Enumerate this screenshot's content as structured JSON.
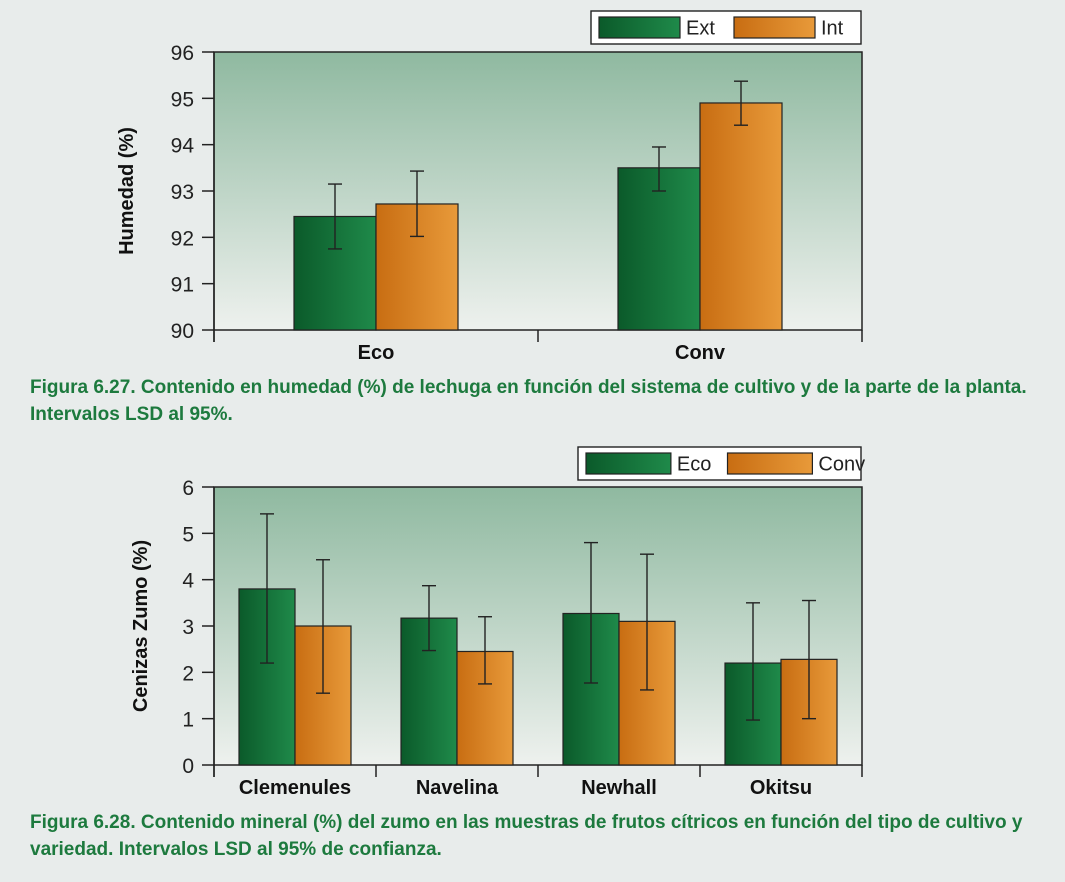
{
  "colors": {
    "series_a_top": "#1f8a4a",
    "series_a_bottom": "#0b5a2a",
    "series_b_top": "#e89a3a",
    "series_b_bottom": "#c86d12",
    "plot_bg_top": "#8fb9a0",
    "plot_bg_bottom": "#eef1ee",
    "caption": "#1d7a3e"
  },
  "chart_data": [
    {
      "type": "bar",
      "ylabel": "Humedad (%)",
      "xlabel": "",
      "ylim": [
        90,
        96
      ],
      "yticks": [
        90,
        91,
        92,
        93,
        94,
        95,
        96
      ],
      "categories": [
        "Eco",
        "Conv"
      ],
      "series": [
        {
          "name": "Ext",
          "values": [
            92.45,
            93.5
          ],
          "err_low": [
            91.75,
            93.0
          ],
          "err_high": [
            93.15,
            93.95
          ]
        },
        {
          "name": "Int",
          "values": [
            92.72,
            94.9
          ],
          "err_low": [
            92.02,
            94.42
          ],
          "err_high": [
            93.43,
            95.37
          ]
        }
      ],
      "legend": "top-right",
      "grid": false
    },
    {
      "type": "bar",
      "ylabel": "Cenizas Zumo (%)",
      "xlabel": "",
      "ylim": [
        0,
        6
      ],
      "yticks": [
        0,
        1,
        2,
        3,
        4,
        5,
        6
      ],
      "categories": [
        "Clemenules",
        "Navelina",
        "Newhall",
        "Okitsu"
      ],
      "series": [
        {
          "name": "Eco",
          "values": [
            3.8,
            3.17,
            3.27,
            2.2
          ],
          "err_low": [
            2.2,
            2.47,
            1.77,
            0.97
          ],
          "err_high": [
            5.42,
            3.87,
            4.8,
            3.5
          ]
        },
        {
          "name": "Conv",
          "values": [
            3.0,
            2.45,
            3.1,
            2.28
          ],
          "err_low": [
            1.55,
            1.75,
            1.62,
            1.0
          ],
          "err_high": [
            4.43,
            3.2,
            4.55,
            3.55
          ]
        }
      ],
      "legend": "top-right",
      "grid": false
    }
  ],
  "captions": {
    "fig1": "Figura 6.27. Contenido en humedad (%) de lechuga en función del sistema de cultivo y de la parte de la planta. Intervalos LSD al 95%.",
    "fig2": "Figura 6.28. Contenido mineral (%) del zumo en las muestras de frutos cítricos en función del tipo de cultivo y variedad. Intervalos LSD al 95% de confianza."
  }
}
